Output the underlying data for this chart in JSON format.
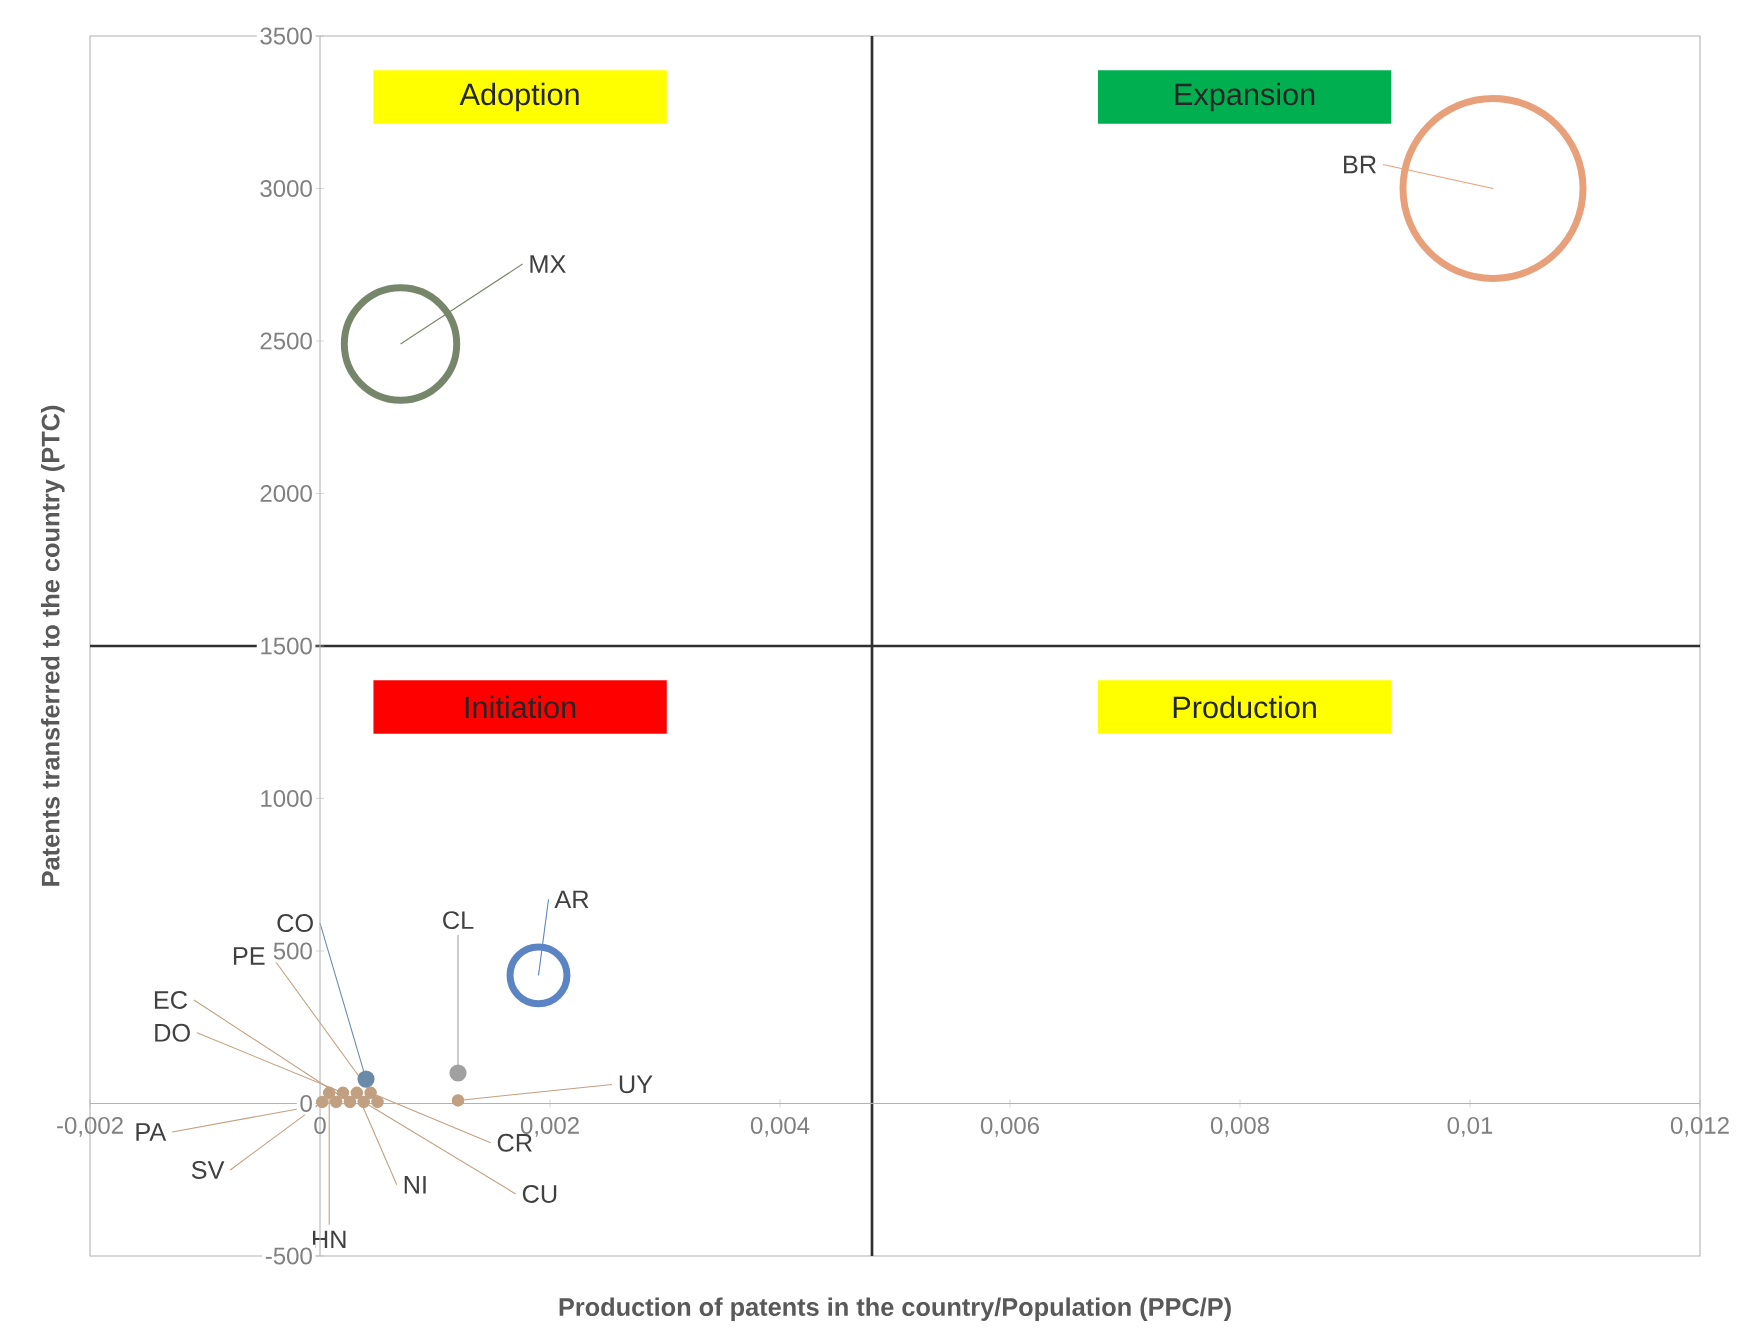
{
  "chart_data": {
    "type": "bubble",
    "xlabel": "Production of patents in the country/Population  (PPC/P)",
    "ylabel": "Patents transferred to the country (PTC)",
    "xlim": [
      -0.002,
      0.012
    ],
    "ylim": [
      -500,
      3500
    ],
    "xticks": [
      {
        "value": -0.002,
        "label": "-0,002"
      },
      0,
      {
        "value": 0.002,
        "label": "0,002"
      },
      {
        "value": 0.004,
        "label": "0,004"
      },
      {
        "value": 0.006,
        "label": "0,006"
      },
      {
        "value": 0.008,
        "label": "0,008"
      },
      {
        "value": 0.01,
        "label": "0,01"
      },
      {
        "value": 0.012,
        "label": "0,012"
      }
    ],
    "yticks": [
      -500,
      0,
      500,
      1000,
      1500,
      2000,
      2500,
      3000,
      3500
    ],
    "ref_lines": [
      {
        "axis": "x",
        "value": 0.0048,
        "color": "#303030"
      },
      {
        "axis": "y",
        "value": 1500,
        "color": "#303030"
      }
    ],
    "annotations": [
      "Adoption",
      "Expansion",
      "Initiation",
      "Production"
    ],
    "series": [
      {
        "name": "BR",
        "color": "#e8a07a",
        "x": [
          0.0102
        ],
        "values": [
          3000
        ],
        "sizes": [
          1
        ]
      },
      {
        "name": "MX",
        "color": "#76866a",
        "x": [
          0.0007
        ],
        "values": [
          2490
        ],
        "sizes": [
          0.39
        ]
      },
      {
        "name": "AR",
        "color": "#5b84c4",
        "x": [
          0.0019
        ],
        "values": [
          420
        ],
        "sizes": [
          0.1
        ]
      },
      {
        "name": "CL",
        "color": "#a0a0a0",
        "x": [
          0.0012
        ],
        "values": [
          100
        ],
        "sizes": [
          0.008
        ]
      },
      {
        "name": "CO",
        "color": "#6a8aa8",
        "x": [
          0.0004
        ],
        "values": [
          80
        ],
        "sizes": [
          0.008
        ]
      },
      {
        "name": "PE",
        "color": "#c0a080",
        "x": [
          0.0005
        ],
        "values": [
          5
        ],
        "sizes": [
          0.004
        ]
      },
      {
        "name": "EC",
        "color": "#c0a080",
        "x": [
          0.00026
        ],
        "values": [
          5
        ],
        "sizes": [
          0.004
        ]
      },
      {
        "name": "DO",
        "color": "#c0a080",
        "x": [
          0.0002
        ],
        "values": [
          35
        ],
        "sizes": [
          0.004
        ]
      },
      {
        "name": "PA",
        "color": "#c0a080",
        "x": [
          0.00014
        ],
        "values": [
          5
        ],
        "sizes": [
          0.004
        ]
      },
      {
        "name": "SV",
        "color": "#c0a080",
        "x": [
          2e-05
        ],
        "values": [
          5
        ],
        "sizes": [
          0.004
        ]
      },
      {
        "name": "HN",
        "color": "#c0a080",
        "x": [
          8e-05
        ],
        "values": [
          35
        ],
        "sizes": [
          0.004
        ]
      },
      {
        "name": "NI",
        "color": "#c0a080",
        "x": [
          0.00032
        ],
        "values": [
          35
        ],
        "sizes": [
          0.004
        ]
      },
      {
        "name": "CR",
        "color": "#c0a080",
        "x": [
          0.00044
        ],
        "values": [
          35
        ],
        "sizes": [
          0.004
        ]
      },
      {
        "name": "CU",
        "color": "#c0a080",
        "x": [
          0.00038
        ],
        "values": [
          5
        ],
        "sizes": [
          0.004
        ]
      },
      {
        "name": "UY",
        "color": "#c0a080",
        "x": [
          0.0012
        ],
        "values": [
          10
        ],
        "sizes": [
          0.004
        ]
      }
    ]
  }
}
